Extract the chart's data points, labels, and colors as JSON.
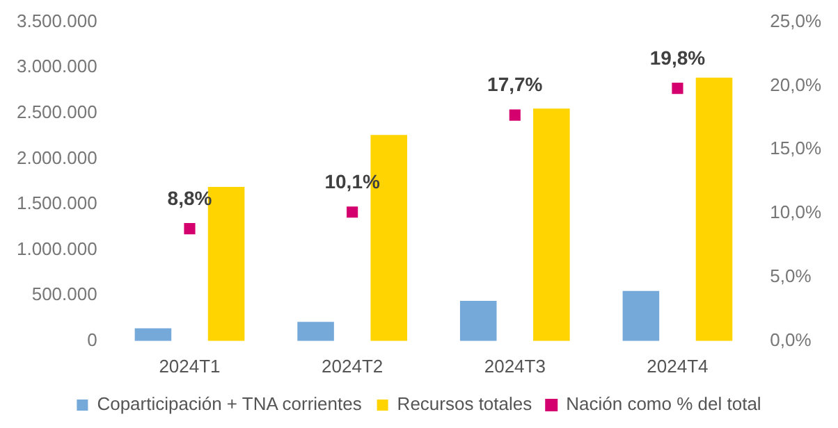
{
  "chart_data": {
    "type": "bar",
    "categories": [
      "2024T1",
      "2024T2",
      "2024T3",
      "2024T4"
    ],
    "series": [
      {
        "name": "Coparticipación + TNA corrientes",
        "color": "#74a9d9",
        "values": [
          140000,
          210000,
          440000,
          550000
        ]
      },
      {
        "name": "Recursos totales",
        "color": "#ffd400",
        "values": [
          1690000,
          2260000,
          2550000,
          2890000
        ]
      },
      {
        "name": "Nación como % del total",
        "type": "scatter",
        "axis": "y2",
        "color": "#d4006e",
        "x": [
          "2024T1",
          "2024T2",
          "2024T3",
          "2024T4"
        ],
        "values": [
          8.8,
          10.1,
          17.7,
          19.8
        ],
        "value_labels": [
          "8,8%",
          "10,1%",
          "17,7%",
          "19,8%"
        ]
      }
    ],
    "ylim": [
      0,
      3500000
    ],
    "yticks": [
      {
        "value": 0,
        "label": "0"
      },
      {
        "value": 500000,
        "label": "500.000"
      },
      {
        "value": 1000000,
        "label": "1.000.000"
      },
      {
        "value": 1500000,
        "label": "1.500.000"
      },
      {
        "value": 2000000,
        "label": "2.000.000"
      },
      {
        "value": 2500000,
        "label": "2.500.000"
      },
      {
        "value": 3000000,
        "label": "3.000.000"
      },
      {
        "value": 3500000,
        "label": "3.500.000"
      }
    ],
    "y2lim": [
      0,
      25
    ],
    "y2ticks": [
      {
        "value": 0,
        "label": "0,0%"
      },
      {
        "value": 5,
        "label": "5,0%"
      },
      {
        "value": 10,
        "label": "10,0%"
      },
      {
        "value": 15,
        "label": "15,0%"
      },
      {
        "value": 20,
        "label": "20,0%"
      },
      {
        "value": 25,
        "label": "25,0%"
      }
    ],
    "marker": "square",
    "grid": false,
    "legend": "bottom"
  }
}
